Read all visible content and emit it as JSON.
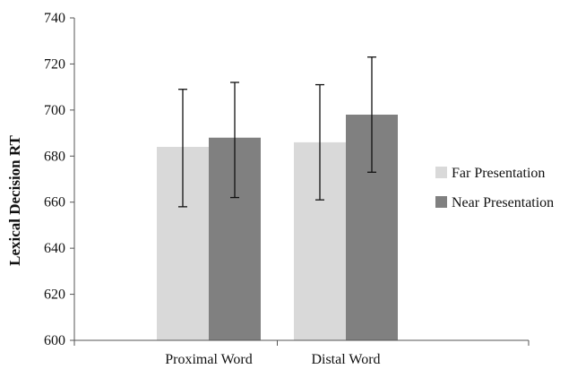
{
  "chart_data": {
    "type": "bar",
    "title": "",
    "xlabel": "",
    "ylabel": "Lexical Decision RT",
    "ylim": [
      600,
      740
    ],
    "yticks": [
      600,
      620,
      640,
      660,
      680,
      700,
      720,
      740
    ],
    "categories": [
      "Proximal Word",
      "Distal Word"
    ],
    "series": [
      {
        "name": "Far Presentation",
        "color": "#d9d9d9",
        "values": [
          684,
          686
        ],
        "error_low": [
          658,
          661
        ],
        "error_high": [
          709,
          711
        ]
      },
      {
        "name": "Near Presentation",
        "color": "#808080",
        "values": [
          688,
          698
        ],
        "error_low": [
          662,
          673
        ],
        "error_high": [
          712,
          723
        ]
      }
    ],
    "legend_position": "right",
    "grid": false
  }
}
